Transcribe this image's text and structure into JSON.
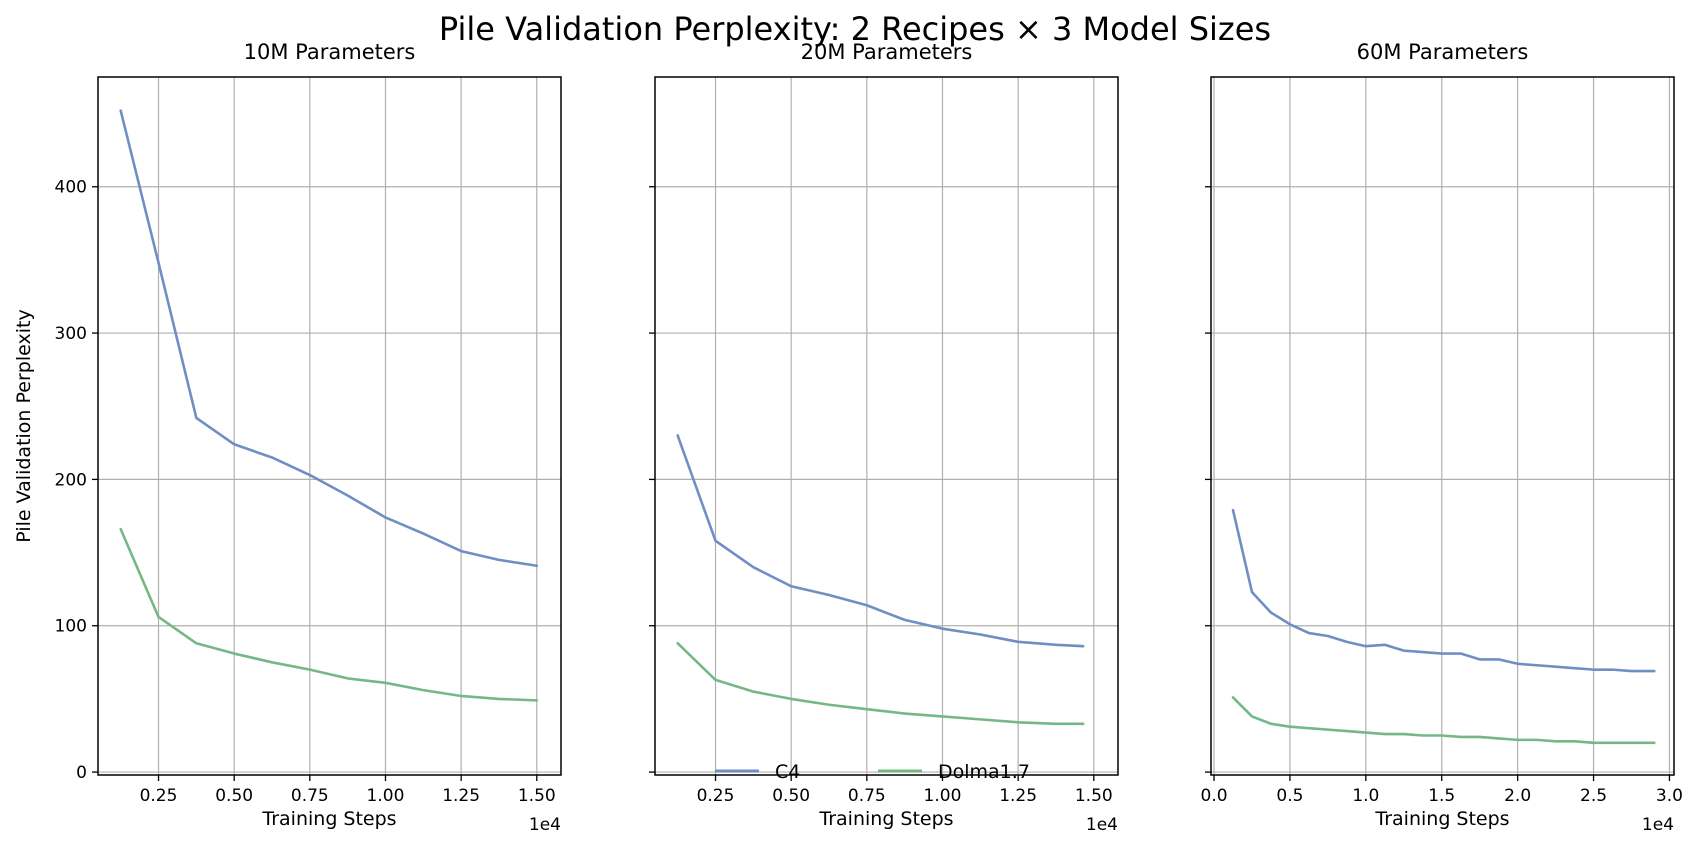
{
  "figure": {
    "title": "Pile Validation Perplexity: 2 Recipes × 3 Model Sizes"
  },
  "legend": {
    "placement": "bottom-center",
    "entries": [
      {
        "label": "C4",
        "color": "#6f8fc4"
      },
      {
        "label": "Dolma1.7",
        "color": "#75b886"
      }
    ]
  },
  "chart_data": [
    {
      "type": "line",
      "title": "10M Parameters",
      "xlabel": "Training Steps",
      "ylabel": "Pile Validation Perplexity",
      "x_offset_label": "1e4",
      "xlim": [
        0.05,
        1.58
      ],
      "ylim": [
        -2,
        475
      ],
      "xticks": [
        0.25,
        0.5,
        0.75,
        1.0,
        1.25,
        1.5
      ],
      "xtick_labels": [
        "0.25",
        "0.50",
        "0.75",
        "1.00",
        "1.25",
        "1.50"
      ],
      "yticks": [
        0,
        100,
        200,
        300,
        400
      ],
      "ytick_labels": [
        "0",
        "100",
        "200",
        "300",
        "400"
      ],
      "grid": true,
      "series": [
        {
          "name": "C4",
          "color": "#6f8fc4",
          "x": [
            0.125,
            0.25,
            0.375,
            0.5,
            0.625,
            0.75,
            0.875,
            1.0,
            1.125,
            1.25,
            1.375,
            1.5
          ],
          "y": [
            452,
            348,
            242,
            224,
            215,
            203,
            189,
            174,
            163,
            151,
            145,
            141
          ]
        },
        {
          "name": "Dolma1.7",
          "color": "#75b886",
          "x": [
            0.125,
            0.25,
            0.375,
            0.5,
            0.625,
            0.75,
            0.875,
            1.0,
            1.125,
            1.25,
            1.375,
            1.5
          ],
          "y": [
            166,
            106,
            88,
            81,
            75,
            70,
            64,
            61,
            56,
            52,
            50,
            49
          ]
        }
      ]
    },
    {
      "type": "line",
      "title": "20M Parameters",
      "xlabel": "Training Steps",
      "ylabel": "",
      "x_offset_label": "1e4",
      "xlim": [
        0.05,
        1.58
      ],
      "ylim": [
        -2,
        475
      ],
      "xticks": [
        0.25,
        0.5,
        0.75,
        1.0,
        1.25,
        1.5
      ],
      "xtick_labels": [
        "0.25",
        "0.50",
        "0.75",
        "1.00",
        "1.25",
        "1.50"
      ],
      "yticks": [
        0,
        100,
        200,
        300,
        400
      ],
      "ytick_labels": [
        "",
        "",
        "",
        "",
        ""
      ],
      "grid": true,
      "series": [
        {
          "name": "C4",
          "color": "#6f8fc4",
          "x": [
            0.125,
            0.25,
            0.375,
            0.5,
            0.625,
            0.75,
            0.875,
            1.0,
            1.125,
            1.25,
            1.375,
            1.465
          ],
          "y": [
            230,
            158,
            140,
            127,
            121,
            114,
            104,
            98,
            94,
            89,
            87,
            86
          ]
        },
        {
          "name": "Dolma1.7",
          "color": "#75b886",
          "x": [
            0.125,
            0.25,
            0.375,
            0.5,
            0.625,
            0.75,
            0.875,
            1.0,
            1.125,
            1.25,
            1.375,
            1.465
          ],
          "y": [
            88,
            63,
            55,
            50,
            46,
            43,
            40,
            38,
            36,
            34,
            33,
            33
          ]
        }
      ]
    },
    {
      "type": "line",
      "title": "60M Parameters",
      "xlabel": "Training Steps",
      "ylabel": "",
      "x_offset_label": "1e4",
      "xlim": [
        -0.02,
        3.03
      ],
      "ylim": [
        -2,
        475
      ],
      "xticks": [
        0.0,
        0.5,
        1.0,
        1.5,
        2.0,
        2.5,
        3.0
      ],
      "xtick_labels": [
        "0.0",
        "0.5",
        "1.0",
        "1.5",
        "2.0",
        "2.5",
        "3.0"
      ],
      "yticks": [
        0,
        100,
        200,
        300,
        400
      ],
      "ytick_labels": [
        "",
        "",
        "",
        "",
        ""
      ],
      "grid": true,
      "series": [
        {
          "name": "C4",
          "color": "#6f8fc4",
          "x": [
            0.125,
            0.25,
            0.375,
            0.5,
            0.625,
            0.75,
            0.875,
            1.0,
            1.125,
            1.25,
            1.375,
            1.5,
            1.625,
            1.75,
            1.875,
            2.0,
            2.125,
            2.25,
            2.375,
            2.5,
            2.625,
            2.75,
            2.9
          ],
          "y": [
            179,
            123,
            109,
            101,
            95,
            93,
            89,
            86,
            87,
            83,
            82,
            81,
            81,
            77,
            77,
            74,
            73,
            72,
            71,
            70,
            70,
            69,
            69
          ]
        },
        {
          "name": "Dolma1.7",
          "color": "#75b886",
          "x": [
            0.125,
            0.25,
            0.375,
            0.5,
            0.625,
            0.75,
            0.875,
            1.0,
            1.125,
            1.25,
            1.375,
            1.5,
            1.625,
            1.75,
            1.875,
            2.0,
            2.125,
            2.25,
            2.375,
            2.5,
            2.625,
            2.75,
            2.9
          ],
          "y": [
            51,
            38,
            33,
            31,
            30,
            29,
            28,
            27,
            26,
            26,
            25,
            25,
            24,
            24,
            23,
            22,
            22,
            21,
            21,
            20,
            20,
            20,
            20
          ]
        }
      ]
    }
  ]
}
